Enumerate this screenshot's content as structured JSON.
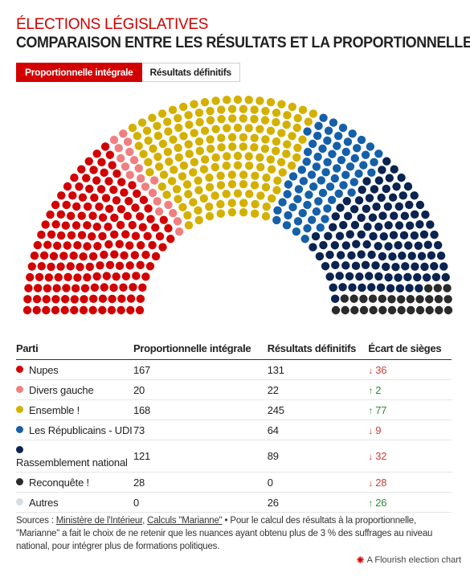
{
  "header": {
    "pretitle": "ÉLECTIONS LÉGISLATIVES",
    "title": "COMPARAISON ENTRE LES RÉSULTATS ET LA PROPORTIONNELLE"
  },
  "tabs": [
    {
      "label": "Proportionnelle intégrale",
      "active": true
    },
    {
      "label": "Résultats définitifs",
      "active": false
    }
  ],
  "colors": {
    "accent": "#d20000",
    "down": "#c8403a",
    "up": "#2f8a3e"
  },
  "table": {
    "headers": [
      "Parti",
      "Proportionnelle intégrale",
      "Résultats définitifs",
      "Écart de sièges"
    ],
    "rows": [
      {
        "party": "Nupes",
        "color": "#d20000",
        "prop": "167",
        "result": "131",
        "gap": "36",
        "direction": "down"
      },
      {
        "party": "Divers gauche",
        "color": "#f08080",
        "prop": "20",
        "result": "22",
        "gap": "2",
        "direction": "up"
      },
      {
        "party": "Ensemble !",
        "color": "#d4b000",
        "prop": "168",
        "result": "245",
        "gap": "77",
        "direction": "up"
      },
      {
        "party": "Les Républicains - UDI",
        "color": "#1560a8",
        "prop": "73",
        "result": "64",
        "gap": "9",
        "direction": "down"
      },
      {
        "party": "Rassemblement national",
        "color": "#0a2350",
        "prop": "121",
        "result": "89",
        "gap": "32",
        "direction": "down"
      },
      {
        "party": "Reconquête !",
        "color": "#2b2b2b",
        "prop": "28",
        "result": "0",
        "gap": "28",
        "direction": "down"
      },
      {
        "party": "Autres",
        "color": "#d4dde3",
        "prop": "0",
        "result": "26",
        "gap": "26",
        "direction": "up"
      }
    ]
  },
  "sources": {
    "prefix": "Sources : ",
    "link1": "Ministère de l'Intérieur",
    "sep": ", ",
    "link2": "Calculs \"Marianne\"",
    "text": " • Pour le calcul des résultats à la proportionnelle, \"Marianne\" a fait le choix de ne retenir que les nuances ayant obtenu plus de 3 % des suffrages au niveau national, pour intégrer plus de formations politiques."
  },
  "credit": "A Flourish election chart",
  "chart_data": {
    "type": "hemicycle",
    "view": "Proportionnelle intégrale",
    "total_seats": 577,
    "series": [
      {
        "name": "Nupes",
        "seats": 167,
        "color": "#d20000"
      },
      {
        "name": "Divers gauche",
        "seats": 20,
        "color": "#f08080"
      },
      {
        "name": "Ensemble !",
        "seats": 168,
        "color": "#d4b000"
      },
      {
        "name": "Les Républicains - UDI",
        "seats": 73,
        "color": "#1560a8"
      },
      {
        "name": "Rassemblement national",
        "seats": 121,
        "color": "#0a2350"
      },
      {
        "name": "Reconquête !",
        "seats": 28,
        "color": "#2b2b2b"
      },
      {
        "name": "Autres",
        "seats": 0,
        "color": "#d4dde3"
      }
    ]
  }
}
